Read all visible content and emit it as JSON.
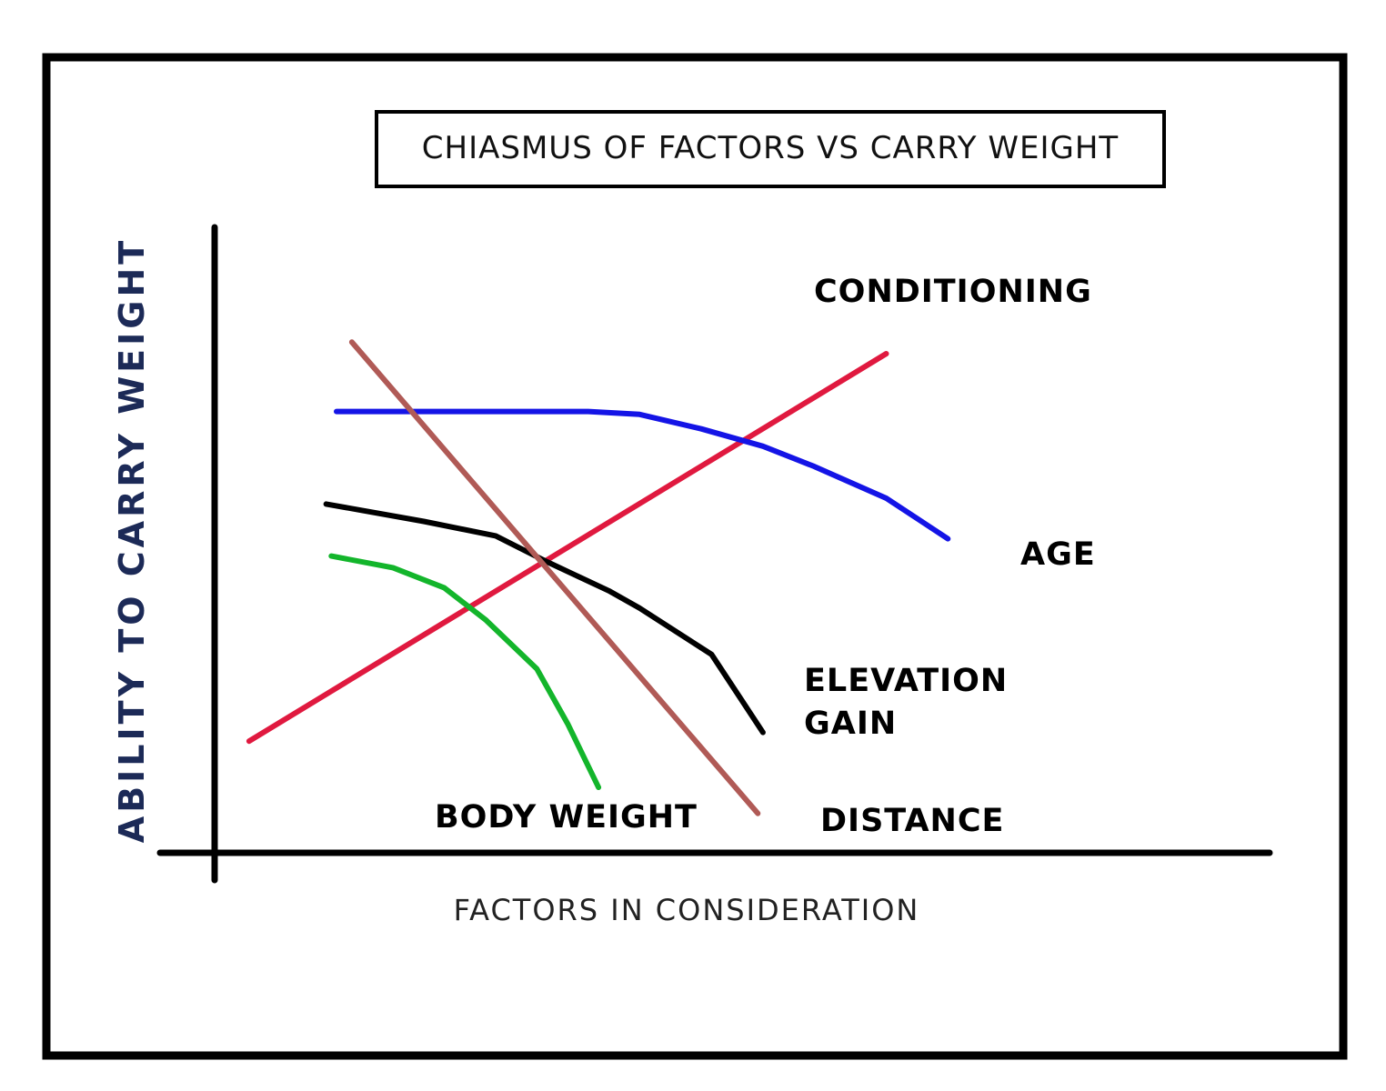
{
  "chart_data": {
    "type": "line",
    "title": "CHIASMUS OF FACTORS VS CARRY WEIGHT",
    "xlabel": "FACTORS IN CONSIDERATION",
    "ylabel": "ABILITY TO CARRY WEIGHT",
    "xlim": [
      0,
      100
    ],
    "ylim": [
      0,
      100
    ],
    "grid": false,
    "legend": "none",
    "series": [
      {
        "name": "CONDITIONING",
        "color": "#e0193f",
        "points": [
          [
            3,
            19
          ],
          [
            65,
            86
          ]
        ]
      },
      {
        "name": "AGE",
        "color": "#1414e6",
        "points": [
          [
            11.5,
            76
          ],
          [
            36,
            76
          ],
          [
            41,
            75.5
          ],
          [
            47,
            73
          ],
          [
            53,
            70
          ],
          [
            58,
            66.5
          ],
          [
            65,
            61
          ],
          [
            71,
            54
          ]
        ]
      },
      {
        "name": "ELEVATION GAIN",
        "color": "#000000",
        "points": [
          [
            10.5,
            60
          ],
          [
            20,
            57
          ],
          [
            27,
            54.5
          ],
          [
            32,
            50
          ],
          [
            38,
            45
          ],
          [
            41,
            42
          ],
          [
            48,
            34
          ],
          [
            53,
            20.5
          ]
        ]
      },
      {
        "name": "DISTANCE",
        "color": "#b05a56",
        "points": [
          [
            13,
            88
          ],
          [
            52.5,
            6.5
          ]
        ]
      },
      {
        "name": "BODY WEIGHT",
        "color": "#13b52b",
        "points": [
          [
            11,
            51
          ],
          [
            17,
            49
          ],
          [
            22,
            45.5
          ],
          [
            26,
            40
          ],
          [
            31,
            31.5
          ],
          [
            34,
            22
          ],
          [
            37,
            11
          ]
        ]
      }
    ]
  }
}
